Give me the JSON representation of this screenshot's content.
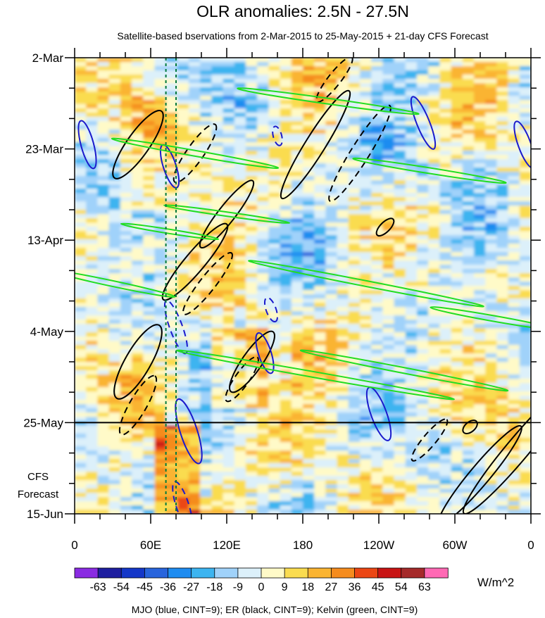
{
  "chart_data": {
    "type": "heatmap",
    "title": "OLR anomalies: 2.5N - 27.5N",
    "subtitle": "Satellite-based bservations from 2-Mar-2015 to 25-May-2015 + 21-day CFS Forecast",
    "x_tick_labels": [
      "0",
      "60E",
      "120E",
      "180",
      "120W",
      "60W",
      "0"
    ],
    "x_tick_longitudes": [
      0,
      60,
      120,
      180,
      240,
      300,
      360
    ],
    "y_tick_labels": [
      "2-Mar",
      "23-Mar",
      "13-Apr",
      "4-May",
      "25-May",
      "15-Jun"
    ],
    "y_tick_days": [
      0,
      21,
      42,
      63,
      84,
      105
    ],
    "forecast_label_line1": "CFS",
    "forecast_label_line2": "Forecast",
    "observation_end_day": 84,
    "colorbar": {
      "labels": [
        "-63",
        "-54",
        "-45",
        "-36",
        "-27",
        "-18",
        "-9",
        "0",
        "9",
        "18",
        "27",
        "36",
        "45",
        "54",
        "63"
      ],
      "colors": [
        "#8a2be2",
        "#1e1ea0",
        "#1437c8",
        "#2864dc",
        "#1e8cf0",
        "#3cb4f0",
        "#a0d2fa",
        "#dcf0fa",
        "#fffac8",
        "#fadc50",
        "#fab432",
        "#f58c1e",
        "#eb4614",
        "#c81414",
        "#a52a2a",
        "#ff69b4"
      ],
      "units": "W/m^2"
    },
    "overlay_legend": "MJO (blue, CINT=9); ER (black, CINT=9); Kelvin (green, CINT=9)",
    "reference_longitudes": [
      72,
      80
    ],
    "colors": {
      "mjo": "#1a1acc",
      "er": "#000000",
      "kelvin": "#22dd22",
      "reference_lines": "#007a3d"
    }
  }
}
